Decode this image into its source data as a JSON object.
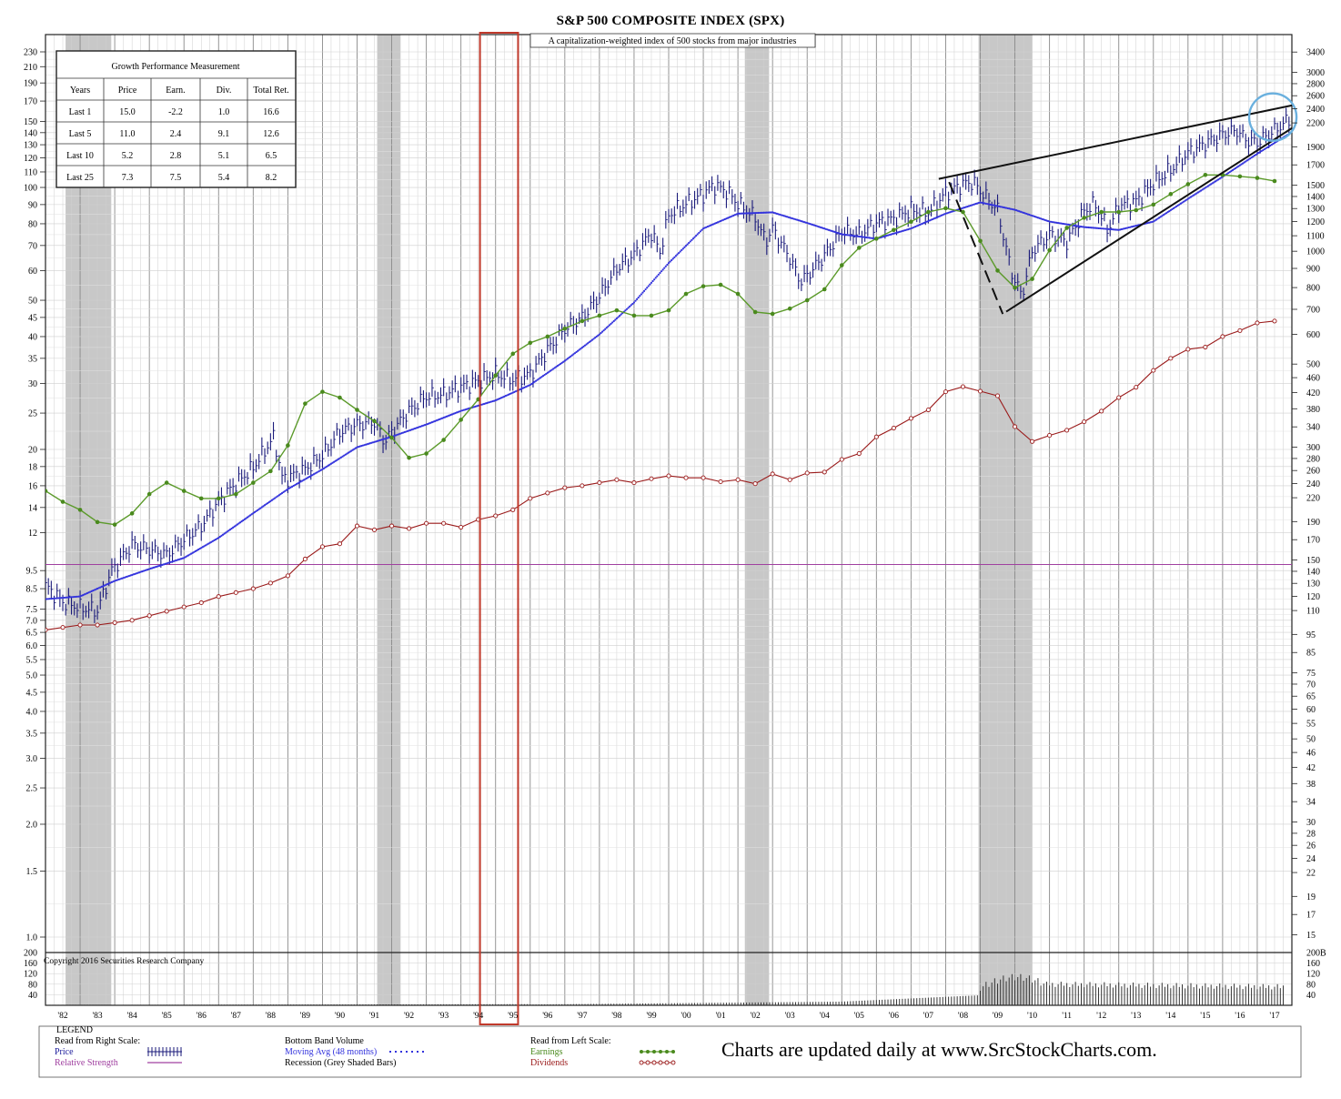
{
  "chart_data": {
    "type": "line",
    "title": "S&P 500 COMPOSITE INDEX (SPX)",
    "subtitle": "A capitalization-weighted index of 500 stocks from major industries",
    "left_scale": "log",
    "right_scale": "log",
    "grid": true,
    "years": [
      "'82",
      "'83",
      "'84",
      "'85",
      "'86",
      "'87",
      "'88",
      "'89",
      "'90",
      "'91",
      "'92",
      "'93",
      "'94",
      "'95",
      "'96",
      "'97",
      "'98",
      "'99",
      "'00",
      "'01",
      "'02",
      "'03",
      "'04",
      "'05",
      "'06",
      "'07",
      "'08",
      "'09",
      "'10",
      "'11",
      "'12",
      "'13",
      "'14",
      "'15",
      "'16",
      "'17"
    ],
    "left_axis_ticks": [
      "230",
      "210",
      "190",
      "170",
      "150",
      "140",
      "130",
      "120",
      "110",
      "100",
      "90",
      "80",
      "70",
      "60",
      "50",
      "45",
      "40",
      "35",
      "30",
      "25",
      "20",
      "18",
      "16",
      "14",
      "12",
      "9.5",
      "8.5",
      "7.5",
      "7.0",
      "6.5",
      "6.0",
      "5.5",
      "5.0",
      "4.5",
      "4.0",
      "3.5",
      "3.0",
      "2.5",
      "2.0",
      "1.5",
      "1.0"
    ],
    "right_axis_ticks": [
      "3400",
      "3000",
      "2800",
      "2600",
      "2400",
      "2200",
      "1900",
      "1700",
      "1500",
      "1400",
      "1300",
      "1200",
      "1100",
      "1000",
      "900",
      "800",
      "700",
      "600",
      "500",
      "460",
      "420",
      "380",
      "340",
      "300",
      "280",
      "260",
      "240",
      "220",
      "190",
      "170",
      "150",
      "140",
      "130",
      "120",
      "110",
      "95",
      "85",
      "75",
      "70",
      "65",
      "60",
      "55",
      "50",
      "46",
      "42",
      "38",
      "34",
      "30",
      "28",
      "26",
      "24",
      "22",
      "19",
      "17",
      "15"
    ],
    "volume_ticks": [
      "200",
      "160",
      "120",
      "80",
      "40"
    ],
    "volume_right_top": "200B",
    "recessions": [
      [
        1981.58,
        1982.9
      ],
      [
        1990.58,
        1991.25
      ],
      [
        2001.2,
        2001.9
      ],
      [
        2007.95,
        2009.5
      ]
    ],
    "highlight_period": [
      1993.55,
      1994.65
    ],
    "series": [
      {
        "name": "Price",
        "scale": "right",
        "x": [
          1981.0,
          1981.5,
          1982.0,
          1982.5,
          1982.9,
          1983.5,
          1984.0,
          1984.5,
          1985.0,
          1985.5,
          1986.0,
          1986.5,
          1987.0,
          1987.6,
          1987.85,
          1988.5,
          1989.0,
          1989.5,
          1990.0,
          1990.5,
          1990.8,
          1991.0,
          1991.5,
          1992.0,
          1992.5,
          1993.0,
          1993.5,
          1994.0,
          1994.5,
          1995.0,
          1995.5,
          1996.0,
          1996.5,
          1997.0,
          1997.5,
          1998.0,
          1998.5,
          1998.75,
          1999.0,
          1999.5,
          2000.0,
          2000.3,
          2000.7,
          2001.0,
          2001.5,
          2001.8,
          2002.0,
          2002.5,
          2002.8,
          2003.0,
          2003.5,
          2004.0,
          2004.5,
          2005.0,
          2005.5,
          2006.0,
          2006.5,
          2007.0,
          2007.5,
          2007.8,
          2008.0,
          2008.5,
          2008.9,
          2009.2,
          2009.5,
          2010.0,
          2010.5,
          2011.0,
          2011.3,
          2011.7,
          2012.0,
          2012.5,
          2013.0,
          2013.5,
          2014.0,
          2014.5,
          2015.0,
          2015.4,
          2015.7,
          2016.0,
          2016.5,
          2016.9,
          2017.0
        ],
        "values": [
          128,
          116,
          112,
          110,
          140,
          165,
          160,
          155,
          170,
          185,
          215,
          240,
          265,
          320,
          245,
          262,
          285,
          330,
          345,
          350,
          310,
          330,
          375,
          410,
          415,
          435,
          450,
          470,
          455,
          470,
          545,
          620,
          665,
          760,
          900,
          980,
          1120,
          995,
          1250,
          1340,
          1420,
          1500,
          1440,
          1340,
          1230,
          1060,
          1150,
          960,
          830,
          860,
          975,
          1130,
          1110,
          1190,
          1220,
          1290,
          1270,
          1430,
          1510,
          1530,
          1450,
          1290,
          880,
          760,
          1000,
          1110,
          1060,
          1280,
          1340,
          1140,
          1320,
          1360,
          1520,
          1650,
          1830,
          1940,
          2050,
          2100,
          1980,
          1950,
          2100,
          2240,
          2280
        ]
      },
      {
        "name": "Moving Avg (48 months)",
        "scale": "right",
        "x": [
          1981.0,
          1982.0,
          1983.0,
          1984.0,
          1985.0,
          1986.0,
          1987.0,
          1988.0,
          1989.0,
          1990.0,
          1991.0,
          1992.0,
          1993.0,
          1994.0,
          1995.0,
          1996.0,
          1997.0,
          1998.0,
          1999.0,
          2000.0,
          2001.0,
          2002.0,
          2003.0,
          2004.0,
          2005.0,
          2006.0,
          2007.0,
          2008.0,
          2009.0,
          2010.0,
          2011.0,
          2012.0,
          2013.0,
          2014.0,
          2015.0,
          2016.0,
          2017.0
        ],
        "values": [
          118,
          120,
          132,
          142,
          152,
          172,
          200,
          232,
          262,
          300,
          320,
          345,
          375,
          400,
          440,
          510,
          600,
          730,
          930,
          1150,
          1260,
          1270,
          1190,
          1110,
          1080,
          1150,
          1260,
          1350,
          1290,
          1200,
          1160,
          1140,
          1200,
          1380,
          1580,
          1820,
          2080
        ]
      },
      {
        "name": "Earnings",
        "scale": "left",
        "x": [
          1981.0,
          1981.5,
          1982.0,
          1982.5,
          1983.0,
          1983.5,
          1984.0,
          1984.5,
          1985.0,
          1985.5,
          1986.0,
          1986.5,
          1987.0,
          1987.5,
          1988.0,
          1988.5,
          1989.0,
          1989.5,
          1990.0,
          1990.5,
          1991.0,
          1991.5,
          1992.0,
          1992.5,
          1993.0,
          1993.5,
          1994.0,
          1994.5,
          1995.0,
          1995.5,
          1996.0,
          1996.5,
          1997.0,
          1997.5,
          1998.0,
          1998.5,
          1999.0,
          1999.5,
          2000.0,
          2000.5,
          2001.0,
          2001.5,
          2002.0,
          2002.5,
          2003.0,
          2003.5,
          2004.0,
          2004.5,
          2005.0,
          2005.5,
          2006.0,
          2006.5,
          2007.0,
          2007.5,
          2008.0,
          2008.5,
          2009.0,
          2009.5,
          2010.0,
          2010.5,
          2011.0,
          2011.5,
          2012.0,
          2012.5,
          2013.0,
          2013.5,
          2014.0,
          2014.5,
          2015.0,
          2015.5,
          2016.0,
          2016.5
        ],
        "values": [
          15.5,
          14.5,
          13.8,
          12.8,
          12.6,
          13.5,
          15.2,
          16.3,
          15.5,
          14.8,
          14.8,
          15.2,
          16.3,
          17.5,
          20.5,
          26.5,
          28.5,
          27.5,
          25.5,
          23.8,
          21.5,
          19.0,
          19.5,
          21.2,
          24.0,
          27.2,
          31.5,
          36.0,
          38.5,
          40.0,
          42.0,
          44.0,
          45.5,
          47.0,
          45.5,
          45.5,
          47.0,
          52.0,
          54.5,
          55.0,
          52.0,
          46.5,
          46.0,
          47.5,
          50.0,
          53.5,
          62.0,
          69.0,
          73.0,
          77.0,
          81.0,
          86.0,
          88.0,
          86.0,
          72.0,
          60.0,
          54.0,
          57.0,
          68.0,
          78.0,
          83.0,
          86.0,
          86.0,
          87.0,
          90.0,
          96.0,
          102.0,
          108.0,
          108.0,
          107.0,
          106.0,
          104.0
        ]
      },
      {
        "name": "Dividends",
        "scale": "left",
        "x": [
          1981.0,
          1981.5,
          1982.0,
          1982.5,
          1983.0,
          1983.5,
          1984.0,
          1984.5,
          1985.0,
          1985.5,
          1986.0,
          1986.5,
          1987.0,
          1987.5,
          1988.0,
          1988.5,
          1989.0,
          1989.5,
          1990.0,
          1990.5,
          1991.0,
          1991.5,
          1992.0,
          1992.5,
          1993.0,
          1993.5,
          1994.0,
          1994.5,
          1995.0,
          1995.5,
          1996.0,
          1996.5,
          1997.0,
          1997.5,
          1998.0,
          1998.5,
          1999.0,
          1999.5,
          2000.0,
          2000.5,
          2001.0,
          2001.5,
          2002.0,
          2002.5,
          2003.0,
          2003.5,
          2004.0,
          2004.5,
          2005.0,
          2005.5,
          2006.0,
          2006.5,
          2007.0,
          2007.5,
          2008.0,
          2008.5,
          2009.0,
          2009.5,
          2010.0,
          2010.5,
          2011.0,
          2011.5,
          2012.0,
          2012.5,
          2013.0,
          2013.5,
          2014.0,
          2014.5,
          2015.0,
          2015.5,
          2016.0,
          2016.5
        ],
        "values": [
          6.6,
          6.7,
          6.8,
          6.8,
          6.9,
          7.0,
          7.2,
          7.4,
          7.6,
          7.8,
          8.1,
          8.3,
          8.5,
          8.8,
          9.2,
          10.2,
          11.0,
          11.2,
          12.5,
          12.2,
          12.5,
          12.3,
          12.7,
          12.7,
          12.4,
          13.0,
          13.3,
          13.8,
          14.8,
          15.3,
          15.8,
          16.0,
          16.3,
          16.6,
          16.3,
          16.7,
          17.0,
          16.8,
          16.8,
          16.4,
          16.6,
          16.2,
          17.2,
          16.6,
          17.3,
          17.4,
          18.8,
          19.5,
          21.6,
          22.8,
          24.2,
          25.5,
          28.5,
          29.4,
          28.6,
          27.8,
          23.0,
          21.0,
          21.8,
          22.5,
          23.7,
          25.3,
          27.5,
          29.3,
          32.5,
          35.0,
          37.0,
          37.5,
          40.0,
          41.5,
          43.5,
          44.0
        ]
      }
    ],
    "relative_strength_level": 146,
    "annotations": [
      "wedge trend lines on 2007–2016 price",
      "dashed line 2007 top to 2009 bottom",
      "circle around 2016 price"
    ]
  },
  "performance_table": {
    "title": "Growth Performance Measurement",
    "columns": [
      "Years",
      "Price",
      "Earn.",
      "Div.",
      "Total Ret."
    ],
    "rows": [
      [
        "Last 1",
        "15.0",
        "-2.2",
        "1.0",
        "16.6"
      ],
      [
        "Last 5",
        "11.0",
        "2.4",
        "9.1",
        "12.6"
      ],
      [
        "Last 10",
        "5.2",
        "2.8",
        "5.1",
        "6.5"
      ],
      [
        "Last 25",
        "7.3",
        "7.5",
        "5.4",
        "8.2"
      ]
    ]
  },
  "copyright": "Copyright 2016 Securities Research Company",
  "legend": {
    "title": "LEGEND",
    "right_scale_heading": "Read from Right Scale:",
    "price_label": "Price",
    "rs_label": "Relative Strength",
    "volume_heading": "Bottom Band Volume",
    "ma_label": "Moving Avg (48 months)",
    "recession_label": "Recession (Grey Shaded Bars)",
    "left_scale_heading": "Read from Left Scale:",
    "earnings_label": "Earnings",
    "dividends_label": "Dividends",
    "cta": "Charts are updated daily at www.SrcStockCharts.com."
  },
  "colors": {
    "price": "#1a1a7a",
    "moving_avg": "#3333dd",
    "earnings": "#5b9a2a",
    "earnings_dot": "#4a8a1e",
    "dividends": "#9a1a1a",
    "relative_strength": "#a040a0",
    "recession": "#c8c8c8",
    "highlight": "#c0392b",
    "circle": "#6ab0de",
    "grid": "#cfcfcf"
  }
}
